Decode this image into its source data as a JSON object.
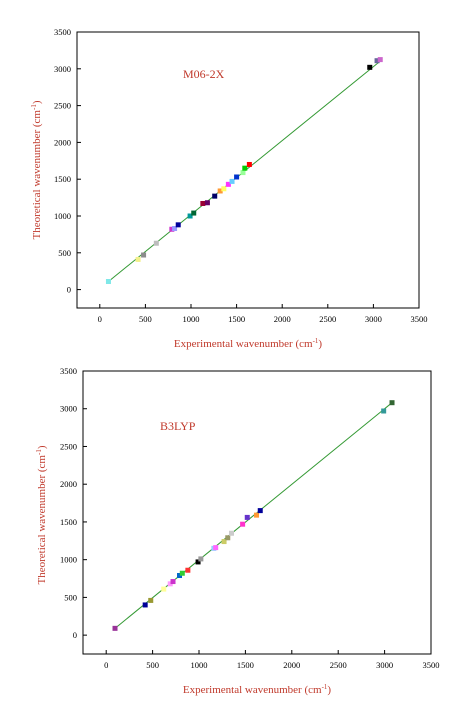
{
  "chart_data": [
    {
      "type": "scatter",
      "title": "M06-2X",
      "xlabel": "Experimental wavenumber (cm",
      "xlabel_sup": "-1",
      "xlabel_close": ")",
      "ylabel": "Theoretical wavenumber (cm",
      "ylabel_sup": "-1",
      "ylabel_close": ")",
      "xlim": [
        -250,
        3500
      ],
      "ylim": [
        -250,
        3500
      ],
      "xticks": [
        0,
        500,
        1000,
        1500,
        2000,
        2500,
        3000,
        3500
      ],
      "yticks": [
        0,
        500,
        1000,
        1500,
        2000,
        2500,
        3000,
        3500
      ],
      "xtick_labels": [
        "0",
        "500",
        "1000",
        "1500",
        "2000",
        "2500",
        "3000",
        "3500"
      ],
      "ytick_labels": [
        "0",
        "500",
        "1000",
        "1500",
        "2000",
        "2500",
        "3000",
        "3500"
      ],
      "fit_line": {
        "x": [
          95,
          3080
        ],
        "y": [
          110,
          3110
        ],
        "color": "#339933"
      },
      "label_color": "#c0392b",
      "points": [
        {
          "x": 95,
          "y": 110,
          "color": "#7fe8e8"
        },
        {
          "x": 420,
          "y": 410,
          "color": "#f3f08a"
        },
        {
          "x": 480,
          "y": 470,
          "color": "#8c8c8c"
        },
        {
          "x": 620,
          "y": 630,
          "color": "#bdbdbd"
        },
        {
          "x": 790,
          "y": 820,
          "color": "#cc33cc"
        },
        {
          "x": 820,
          "y": 830,
          "color": "#9999ff"
        },
        {
          "x": 860,
          "y": 880,
          "color": "#000099"
        },
        {
          "x": 990,
          "y": 1000,
          "color": "#009999"
        },
        {
          "x": 1030,
          "y": 1040,
          "color": "#006633"
        },
        {
          "x": 1130,
          "y": 1170,
          "color": "#990033"
        },
        {
          "x": 1180,
          "y": 1180,
          "color": "#660066"
        },
        {
          "x": 1260,
          "y": 1270,
          "color": "#000066"
        },
        {
          "x": 1320,
          "y": 1340,
          "color": "#ff9933"
        },
        {
          "x": 1360,
          "y": 1370,
          "color": "#ffff66"
        },
        {
          "x": 1410,
          "y": 1430,
          "color": "#ff33ff"
        },
        {
          "x": 1450,
          "y": 1470,
          "color": "#66ccff"
        },
        {
          "x": 1500,
          "y": 1530,
          "color": "#0033cc"
        },
        {
          "x": 1570,
          "y": 1590,
          "color": "#99ff99"
        },
        {
          "x": 1590,
          "y": 1650,
          "color": "#00cc00"
        },
        {
          "x": 1640,
          "y": 1700,
          "color": "#ff0000"
        },
        {
          "x": 2960,
          "y": 3020,
          "color": "#000000"
        },
        {
          "x": 3040,
          "y": 3110,
          "color": "#666699"
        },
        {
          "x": 3075,
          "y": 3125,
          "color": "#cc66cc"
        }
      ]
    },
    {
      "type": "scatter",
      "title": "B3LYP",
      "xlabel": "Experimental wavenumber (cm",
      "xlabel_sup": "-1",
      "xlabel_close": ")",
      "ylabel": "Theoretical wavenumber (cm",
      "ylabel_sup": "-1",
      "ylabel_close": ")",
      "xlim": [
        -250,
        3500
      ],
      "ylim": [
        -250,
        3500
      ],
      "xticks": [
        0,
        500,
        1000,
        1500,
        2000,
        2500,
        3000,
        3500
      ],
      "yticks": [
        0,
        500,
        1000,
        1500,
        2000,
        2500,
        3000,
        3500
      ],
      "xtick_labels": [
        "0",
        "500",
        "1000",
        "1500",
        "2000",
        "2500",
        "3000",
        "3500"
      ],
      "ytick_labels": [
        "0",
        "500",
        "1000",
        "1500",
        "2000",
        "2500",
        "3000",
        "3500"
      ],
      "fit_line": {
        "x": [
          95,
          3080
        ],
        "y": [
          90,
          3080
        ],
        "color": "#339933"
      },
      "label_color": "#c0392b",
      "points": [
        {
          "x": 95,
          "y": 90,
          "color": "#993399"
        },
        {
          "x": 420,
          "y": 400,
          "color": "#000099"
        },
        {
          "x": 480,
          "y": 460,
          "color": "#999933"
        },
        {
          "x": 620,
          "y": 610,
          "color": "#ffff99"
        },
        {
          "x": 690,
          "y": 680,
          "color": "#ff99ff"
        },
        {
          "x": 720,
          "y": 710,
          "color": "#cc33cc"
        },
        {
          "x": 790,
          "y": 790,
          "color": "#0066cc"
        },
        {
          "x": 820,
          "y": 820,
          "color": "#33cc33"
        },
        {
          "x": 880,
          "y": 860,
          "color": "#ff3333"
        },
        {
          "x": 990,
          "y": 970,
          "color": "#000000"
        },
        {
          "x": 1020,
          "y": 1010,
          "color": "#999999"
        },
        {
          "x": 1160,
          "y": 1150,
          "color": "#99ccff"
        },
        {
          "x": 1180,
          "y": 1160,
          "color": "#ff66ff"
        },
        {
          "x": 1270,
          "y": 1240,
          "color": "#cccc66"
        },
        {
          "x": 1310,
          "y": 1290,
          "color": "#999966"
        },
        {
          "x": 1350,
          "y": 1350,
          "color": "#cccccc"
        },
        {
          "x": 1470,
          "y": 1470,
          "color": "#ff33cc"
        },
        {
          "x": 1520,
          "y": 1560,
          "color": "#6633cc"
        },
        {
          "x": 1620,
          "y": 1590,
          "color": "#ff9933"
        },
        {
          "x": 1660,
          "y": 1650,
          "color": "#000099"
        },
        {
          "x": 2990,
          "y": 2970,
          "color": "#339999"
        },
        {
          "x": 3080,
          "y": 3080,
          "color": "#336633"
        }
      ]
    }
  ]
}
